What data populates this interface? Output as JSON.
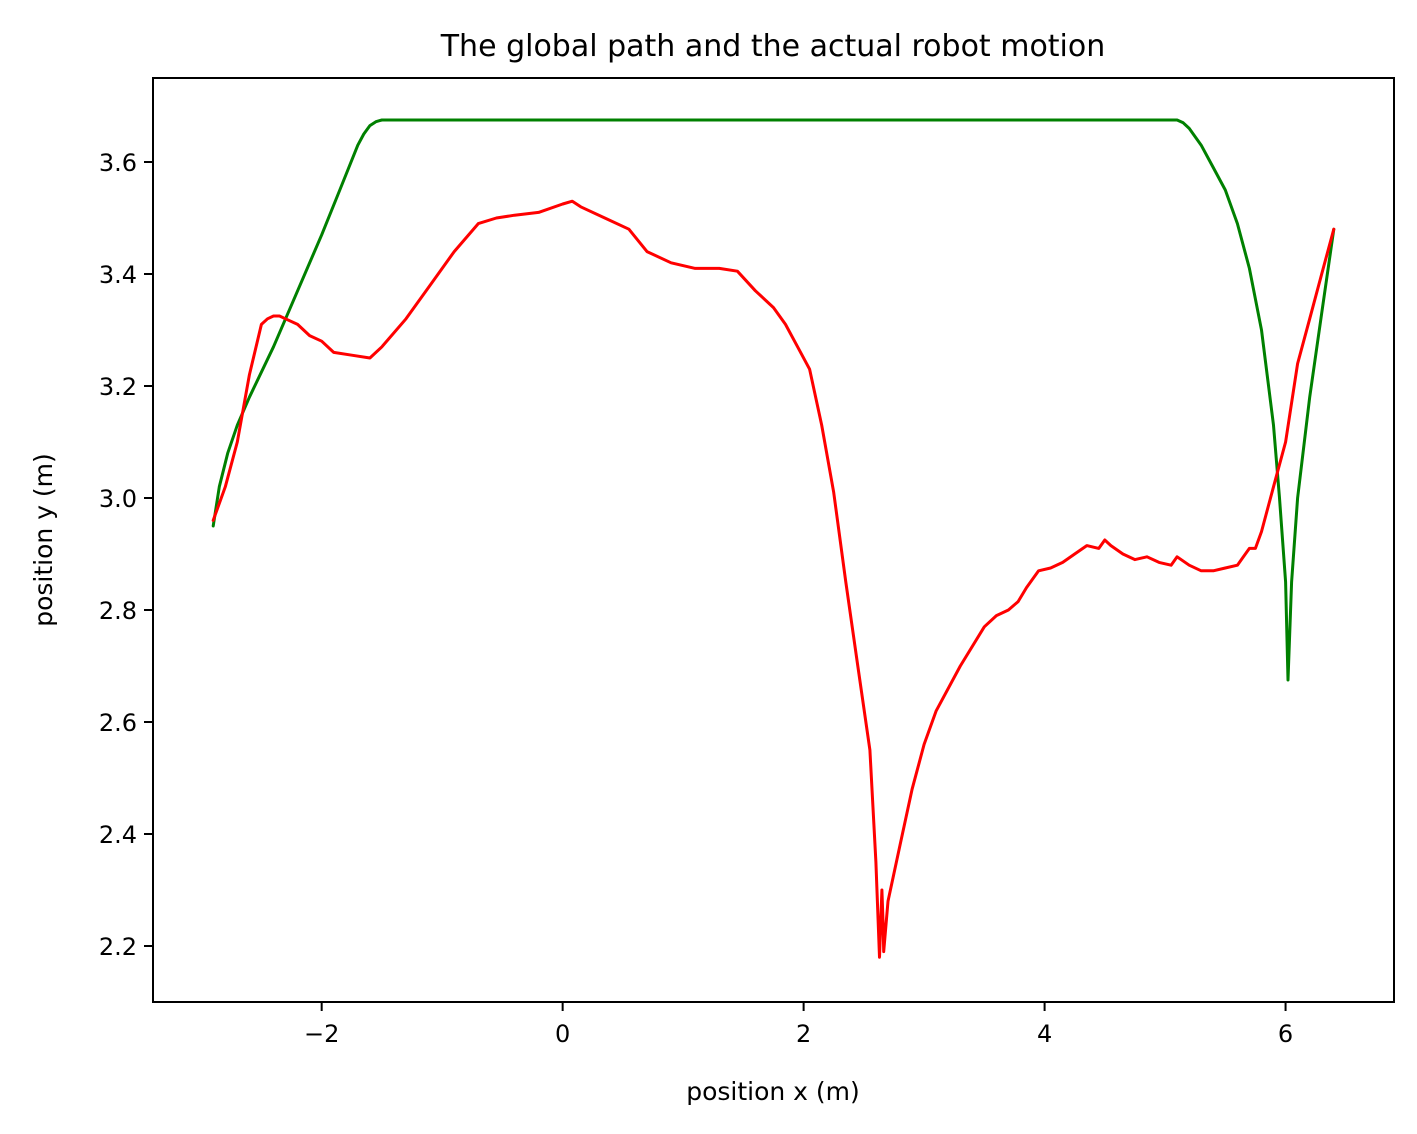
{
  "chart_data": {
    "type": "line",
    "title": "The global path and the actual robot motion",
    "xlabel": "position x (m)",
    "ylabel": "position y (m)",
    "xlim": [
      -3.4,
      6.9
    ],
    "ylim": [
      2.1,
      3.75
    ],
    "xticks": [
      -2,
      0,
      2,
      4,
      6
    ],
    "xtick_labels": [
      "−2",
      "0",
      "2",
      "4",
      "6"
    ],
    "yticks": [
      2.2,
      2.4,
      2.6,
      2.8,
      3.0,
      3.2,
      3.4,
      3.6
    ],
    "ytick_labels": [
      "2.2",
      "2.4",
      "2.6",
      "2.8",
      "3.0",
      "3.2",
      "3.4",
      "3.6"
    ],
    "grid": false,
    "legend": "none",
    "series": [
      {
        "color": "#008000",
        "x": [
          -2.9,
          -2.85,
          -2.78,
          -2.7,
          -2.6,
          -2.4,
          -2.2,
          -2.0,
          -1.85,
          -1.7,
          -1.65,
          -1.6,
          -1.55,
          -1.5,
          -1.0,
          0.0,
          1.0,
          2.0,
          3.0,
          4.0,
          5.0,
          5.1,
          5.15,
          5.2,
          5.3,
          5.4,
          5.5,
          5.6,
          5.7,
          5.8,
          5.9,
          5.95,
          6.0,
          6.02,
          6.05,
          6.1,
          6.2,
          6.3,
          6.4
        ],
        "y": [
          2.95,
          3.02,
          3.08,
          3.13,
          3.18,
          3.27,
          3.37,
          3.47,
          3.55,
          3.63,
          3.65,
          3.665,
          3.672,
          3.675,
          3.675,
          3.675,
          3.675,
          3.675,
          3.675,
          3.675,
          3.675,
          3.675,
          3.67,
          3.66,
          3.63,
          3.59,
          3.55,
          3.49,
          3.41,
          3.3,
          3.13,
          3.0,
          2.85,
          2.675,
          2.85,
          3.0,
          3.18,
          3.33,
          3.48
        ]
      },
      {
        "color": "#ff0000",
        "x": [
          -2.9,
          -2.8,
          -2.7,
          -2.6,
          -2.5,
          -2.45,
          -2.4,
          -2.35,
          -2.3,
          -2.2,
          -2.1,
          -2.0,
          -1.9,
          -1.75,
          -1.6,
          -1.5,
          -1.3,
          -1.1,
          -0.9,
          -0.7,
          -0.55,
          -0.4,
          -0.2,
          0.0,
          0.08,
          0.15,
          0.35,
          0.55,
          0.7,
          0.9,
          1.1,
          1.3,
          1.45,
          1.6,
          1.75,
          1.85,
          1.95,
          2.05,
          2.15,
          2.25,
          2.35,
          2.45,
          2.55,
          2.6,
          2.63,
          2.65,
          2.66,
          2.665,
          2.7,
          2.8,
          2.9,
          3.0,
          3.1,
          3.3,
          3.5,
          3.6,
          3.7,
          3.78,
          3.85,
          3.95,
          4.05,
          4.15,
          4.25,
          4.35,
          4.45,
          4.5,
          4.55,
          4.65,
          4.75,
          4.85,
          4.95,
          5.05,
          5.1,
          5.2,
          5.3,
          5.4,
          5.5,
          5.6,
          5.65,
          5.7,
          5.75,
          5.8,
          5.9,
          6.0,
          6.1,
          6.2,
          6.3,
          6.4
        ],
        "y": [
          2.96,
          3.02,
          3.1,
          3.22,
          3.31,
          3.32,
          3.325,
          3.325,
          3.32,
          3.31,
          3.29,
          3.28,
          3.26,
          3.255,
          3.25,
          3.27,
          3.32,
          3.38,
          3.44,
          3.49,
          3.5,
          3.505,
          3.51,
          3.525,
          3.53,
          3.52,
          3.5,
          3.48,
          3.44,
          3.42,
          3.41,
          3.41,
          3.405,
          3.37,
          3.34,
          3.31,
          3.27,
          3.23,
          3.13,
          3.01,
          2.85,
          2.7,
          2.55,
          2.35,
          2.18,
          2.3,
          2.24,
          2.19,
          2.28,
          2.38,
          2.48,
          2.56,
          2.62,
          2.7,
          2.77,
          2.79,
          2.8,
          2.815,
          2.84,
          2.87,
          2.875,
          2.885,
          2.9,
          2.915,
          2.91,
          2.925,
          2.915,
          2.9,
          2.89,
          2.895,
          2.885,
          2.88,
          2.895,
          2.88,
          2.87,
          2.87,
          2.875,
          2.88,
          2.895,
          2.91,
          2.91,
          2.94,
          3.02,
          3.1,
          3.24,
          3.32,
          3.4,
          3.48
        ]
      }
    ]
  }
}
